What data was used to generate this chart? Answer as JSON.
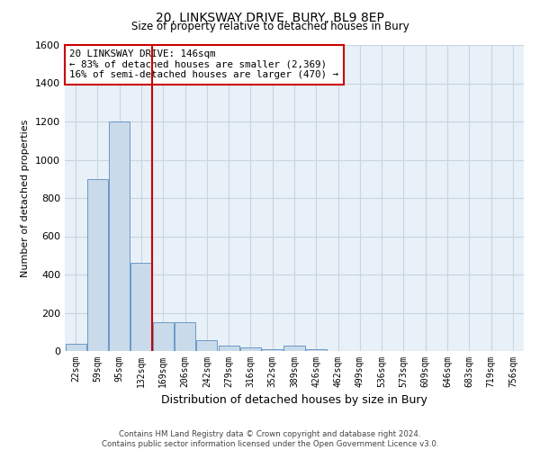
{
  "title": "20, LINKSWAY DRIVE, BURY, BL9 8EP",
  "subtitle": "Size of property relative to detached houses in Bury",
  "xlabel": "Distribution of detached houses by size in Bury",
  "ylabel": "Number of detached properties",
  "footer_line1": "Contains HM Land Registry data © Crown copyright and database right 2024.",
  "footer_line2": "Contains public sector information licensed under the Open Government Licence v3.0.",
  "annotation_line1": "20 LINKSWAY DRIVE: 146sqm",
  "annotation_line2": "← 83% of detached houses are smaller (2,369)",
  "annotation_line3": "16% of semi-detached houses are larger (470) →",
  "bar_color": "#c9daea",
  "bar_edge_color": "#5a8fbf",
  "vline_color": "#cc0000",
  "annotation_box_color": "#cc0000",
  "grid_color": "#c8d4e0",
  "background_color": "#e8f0f8",
  "ylim": [
    0,
    1600
  ],
  "yticks": [
    0,
    200,
    400,
    600,
    800,
    1000,
    1200,
    1400,
    1600
  ],
  "categories": [
    "22sqm",
    "59sqm",
    "95sqm",
    "132sqm",
    "169sqm",
    "206sqm",
    "242sqm",
    "279sqm",
    "316sqm",
    "352sqm",
    "389sqm",
    "426sqm",
    "462sqm",
    "499sqm",
    "536sqm",
    "573sqm",
    "609sqm",
    "646sqm",
    "683sqm",
    "719sqm",
    "756sqm"
  ],
  "values": [
    40,
    900,
    1200,
    460,
    150,
    150,
    55,
    28,
    18,
    10,
    28,
    10,
    0,
    0,
    0,
    0,
    0,
    0,
    0,
    0,
    0
  ],
  "vline_index": 3.5
}
